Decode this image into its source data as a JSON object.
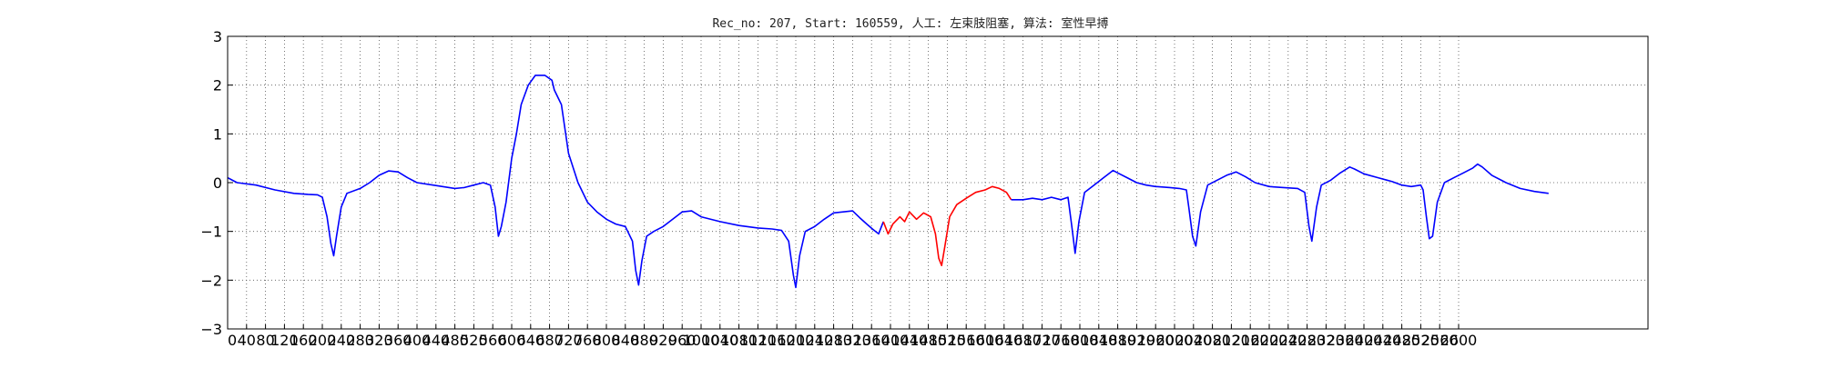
{
  "chart_data": {
    "type": "line",
    "title": "Rec_no: 207, Start: 160559, 人工: 左束肢阻塞, 算法: 室性早搏",
    "xlabel": "",
    "ylabel": "",
    "xlim": [
      0,
      3000
    ],
    "ylim": [
      -3,
      3
    ],
    "yticks": [
      "−3",
      "−2",
      "−1",
      "0",
      "1",
      "2",
      "3"
    ],
    "xticks": [
      "0",
      "40",
      "80",
      "120",
      "160",
      "200",
      "240",
      "280",
      "320",
      "360",
      "400",
      "440",
      "480",
      "520",
      "560",
      "600",
      "640",
      "680",
      "720",
      "760",
      "800",
      "840",
      "880",
      "920",
      "960",
      "1000",
      "1040",
      "1080",
      "1120",
      "1160",
      "1200",
      "1240",
      "1280",
      "1320",
      "1360",
      "1400",
      "1440",
      "1480",
      "1520",
      "1560",
      "1600",
      "1640",
      "1680",
      "1720",
      "1760",
      "1800",
      "1840",
      "1880",
      "1920",
      "1960",
      "2000",
      "2040",
      "2080",
      "2120",
      "2160",
      "2200",
      "2240",
      "2280",
      "2320",
      "2360",
      "2400",
      "2440",
      "2480",
      "2520",
      "2560",
      "2600"
    ],
    "grid": true,
    "series": [
      {
        "color": "#0000ff",
        "points": [
          [
            0,
            0.1
          ],
          [
            20,
            0.0
          ],
          [
            60,
            -0.05
          ],
          [
            100,
            -0.15
          ],
          [
            140,
            -0.22
          ],
          [
            170,
            -0.24
          ],
          [
            190,
            -0.25
          ],
          [
            200,
            -0.3
          ],
          [
            210,
            -0.7
          ],
          [
            218,
            -1.25
          ],
          [
            224,
            -1.5
          ],
          [
            230,
            -1.1
          ],
          [
            240,
            -0.5
          ],
          [
            252,
            -0.22
          ],
          [
            280,
            -0.12
          ],
          [
            300,
            0.0
          ],
          [
            320,
            0.15
          ],
          [
            340,
            0.24
          ],
          [
            360,
            0.22
          ],
          [
            380,
            0.1
          ],
          [
            400,
            0.0
          ],
          [
            440,
            -0.06
          ],
          [
            480,
            -0.12
          ],
          [
            500,
            -0.1
          ],
          [
            520,
            -0.05
          ],
          [
            540,
            0.0
          ],
          [
            555,
            -0.05
          ],
          [
            565,
            -0.5
          ],
          [
            572,
            -1.1
          ],
          [
            578,
            -0.9
          ],
          [
            588,
            -0.4
          ],
          [
            600,
            0.5
          ],
          [
            610,
            1.0
          ],
          [
            620,
            1.6
          ],
          [
            635,
            2.0
          ],
          [
            650,
            2.2
          ],
          [
            670,
            2.2
          ],
          [
            685,
            2.1
          ],
          [
            690,
            1.9
          ],
          [
            705,
            1.6
          ],
          [
            720,
            0.6
          ],
          [
            740,
            0.0
          ],
          [
            760,
            -0.4
          ],
          [
            780,
            -0.6
          ],
          [
            800,
            -0.75
          ],
          [
            820,
            -0.85
          ],
          [
            840,
            -0.9
          ],
          [
            855,
            -1.2
          ],
          [
            862,
            -1.8
          ],
          [
            868,
            -2.1
          ],
          [
            875,
            -1.6
          ],
          [
            885,
            -1.1
          ],
          [
            900,
            -1.0
          ],
          [
            920,
            -0.9
          ],
          [
            940,
            -0.75
          ],
          [
            960,
            -0.6
          ],
          [
            980,
            -0.58
          ],
          [
            1000,
            -0.7
          ],
          [
            1040,
            -0.8
          ],
          [
            1080,
            -0.88
          ],
          [
            1120,
            -0.93
          ],
          [
            1150,
            -0.95
          ],
          [
            1170,
            -0.98
          ],
          [
            1185,
            -1.2
          ],
          [
            1195,
            -1.9
          ],
          [
            1200,
            -2.15
          ],
          [
            1208,
            -1.5
          ],
          [
            1220,
            -1.0
          ],
          [
            1240,
            -0.9
          ],
          [
            1260,
            -0.75
          ],
          [
            1280,
            -0.62
          ],
          [
            1300,
            -0.6
          ],
          [
            1320,
            -0.58
          ],
          [
            1335,
            -0.72
          ],
          [
            1350,
            -0.85
          ],
          [
            1362,
            -0.95
          ],
          [
            1375,
            -1.05
          ],
          [
            1385,
            -0.8
          ]
        ]
      },
      {
        "color": "#ff0000",
        "points": [
          [
            1385,
            -0.8
          ],
          [
            1395,
            -1.05
          ],
          [
            1405,
            -0.85
          ],
          [
            1420,
            -0.7
          ],
          [
            1430,
            -0.8
          ],
          [
            1440,
            -0.6
          ],
          [
            1455,
            -0.75
          ],
          [
            1470,
            -0.62
          ],
          [
            1485,
            -0.7
          ],
          [
            1495,
            -1.05
          ],
          [
            1502,
            -1.55
          ],
          [
            1508,
            -1.7
          ],
          [
            1515,
            -1.3
          ],
          [
            1525,
            -0.7
          ],
          [
            1540,
            -0.45
          ],
          [
            1560,
            -0.32
          ],
          [
            1580,
            -0.2
          ],
          [
            1600,
            -0.15
          ],
          [
            1615,
            -0.08
          ],
          [
            1630,
            -0.12
          ],
          [
            1645,
            -0.2
          ],
          [
            1655,
            -0.35
          ]
        ]
      },
      {
        "color": "#0000ff",
        "points": [
          [
            1655,
            -0.35
          ],
          [
            1680,
            -0.35
          ],
          [
            1700,
            -0.32
          ],
          [
            1720,
            -0.35
          ],
          [
            1740,
            -0.3
          ],
          [
            1760,
            -0.35
          ],
          [
            1775,
            -0.3
          ],
          [
            1783,
            -0.9
          ],
          [
            1790,
            -1.45
          ],
          [
            1798,
            -0.8
          ],
          [
            1810,
            -0.2
          ],
          [
            1830,
            -0.05
          ],
          [
            1850,
            0.1
          ],
          [
            1870,
            0.25
          ],
          [
            1880,
            0.2
          ],
          [
            1900,
            0.1
          ],
          [
            1920,
            0.0
          ],
          [
            1940,
            -0.05
          ],
          [
            1960,
            -0.08
          ],
          [
            1990,
            -0.1
          ],
          [
            2010,
            -0.12
          ],
          [
            2025,
            -0.15
          ],
          [
            2030,
            -0.5
          ],
          [
            2038,
            -1.1
          ],
          [
            2045,
            -1.3
          ],
          [
            2055,
            -0.6
          ],
          [
            2070,
            -0.05
          ],
          [
            2090,
            0.05
          ],
          [
            2110,
            0.15
          ],
          [
            2130,
            0.22
          ],
          [
            2150,
            0.12
          ],
          [
            2170,
            0.0
          ],
          [
            2200,
            -0.08
          ],
          [
            2230,
            -0.1
          ],
          [
            2260,
            -0.12
          ],
          [
            2275,
            -0.2
          ],
          [
            2284,
            -0.9
          ],
          [
            2290,
            -1.2
          ],
          [
            2300,
            -0.5
          ],
          [
            2310,
            -0.05
          ],
          [
            2330,
            0.05
          ],
          [
            2350,
            0.2
          ],
          [
            2370,
            0.32
          ],
          [
            2380,
            0.28
          ],
          [
            2400,
            0.18
          ],
          [
            2430,
            0.1
          ],
          [
            2460,
            0.02
          ],
          [
            2480,
            -0.05
          ],
          [
            2500,
            -0.08
          ],
          [
            2520,
            -0.05
          ],
          [
            2525,
            -0.15
          ],
          [
            2532,
            -0.7
          ],
          [
            2538,
            -1.15
          ],
          [
            2545,
            -1.1
          ],
          [
            2555,
            -0.4
          ],
          [
            2570,
            0.0
          ],
          [
            2590,
            0.1
          ],
          [
            2610,
            0.2
          ],
          [
            2630,
            0.3
          ],
          [
            2640,
            0.38
          ],
          [
            2650,
            0.32
          ],
          [
            2670,
            0.15
          ],
          [
            2700,
            0.0
          ],
          [
            2730,
            -0.12
          ],
          [
            2760,
            -0.18
          ],
          [
            2790,
            -0.22
          ]
        ]
      }
    ]
  }
}
